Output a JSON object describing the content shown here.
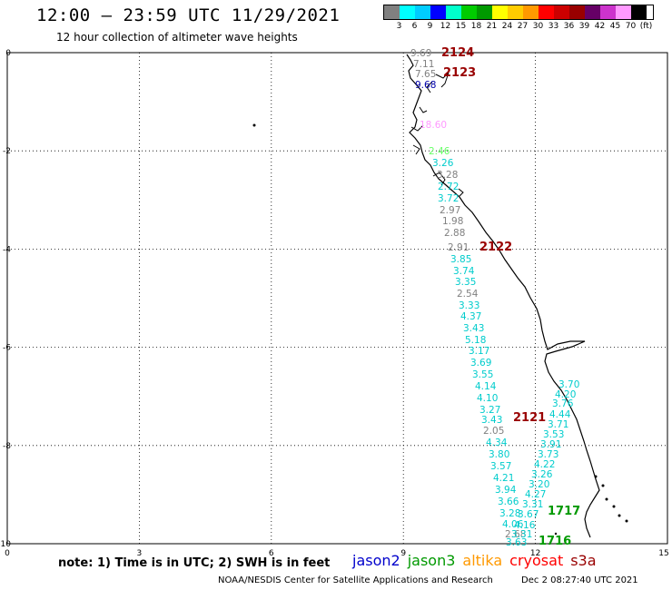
{
  "title": "12:00 – 23:59 UTC 11/29/2021",
  "subtitle": "12 hour collection of altimeter wave heights",
  "color_scale": {
    "colors": [
      "#808080",
      "#00ffff",
      "#00ccff",
      "#0000ff",
      "#00ffcc",
      "#00cc00",
      "#009900",
      "#ffff00",
      "#ffcc00",
      "#ff9900",
      "#ff0000",
      "#cc0000",
      "#990000",
      "#660066",
      "#cc33cc",
      "#ff99ff",
      "#000000"
    ],
    "labels": [
      "3",
      "6",
      "9",
      "12",
      "15",
      "18",
      "21",
      "24",
      "27",
      "30",
      "33",
      "36",
      "39",
      "42",
      "45",
      "70",
      "(ft)"
    ]
  },
  "axes": {
    "x_ticks": [
      "0",
      "3",
      "6",
      "9",
      "12",
      "15"
    ],
    "y_ticks": [
      "0",
      "-2",
      "-4",
      "-6",
      "-8",
      "-10"
    ]
  },
  "passes": [
    {
      "label": "2124",
      "color": "#990000"
    },
    {
      "label": "2123",
      "color": "#990000"
    },
    {
      "label": "2122",
      "color": "#990000"
    },
    {
      "label": "2121",
      "color": "#990000"
    },
    {
      "label": "1717",
      "color": "#009900"
    },
    {
      "label": "1716",
      "color": "#009900"
    }
  ],
  "wave_heights": [
    {
      "v": "9.69",
      "c": "#808080"
    },
    {
      "v": "7.11",
      "c": "#808080"
    },
    {
      "v": "7.65",
      "c": "#808080"
    },
    {
      "v": "9.68",
      "c": "#0000aa"
    },
    {
      "v": "18.60",
      "c": "#ff99ff"
    },
    {
      "v": "2.46",
      "c": "#66ff66"
    },
    {
      "v": "3.26",
      "c": "#00cccc"
    },
    {
      "v": "3.28",
      "c": "#808080"
    },
    {
      "v": "2.72",
      "c": "#00cccc"
    },
    {
      "v": "3.72",
      "c": "#00cccc"
    },
    {
      "v": "2.97",
      "c": "#808080"
    },
    {
      "v": "1.98",
      "c": "#808080"
    },
    {
      "v": "2.88",
      "c": "#808080"
    },
    {
      "v": "2.91",
      "c": "#808080"
    },
    {
      "v": "3.85",
      "c": "#00cccc"
    },
    {
      "v": "3.74",
      "c": "#00cccc"
    },
    {
      "v": "3.35",
      "c": "#00cccc"
    },
    {
      "v": "2.54",
      "c": "#808080"
    },
    {
      "v": "3.33",
      "c": "#00cccc"
    },
    {
      "v": "4.37",
      "c": "#00cccc"
    },
    {
      "v": "3.43",
      "c": "#00cccc"
    },
    {
      "v": "5.18",
      "c": "#00cccc"
    },
    {
      "v": "3.17",
      "c": "#00cccc"
    },
    {
      "v": "3.69",
      "c": "#00cccc"
    },
    {
      "v": "3.55",
      "c": "#00cccc"
    },
    {
      "v": "4.14",
      "c": "#00cccc"
    },
    {
      "v": "4.10",
      "c": "#00cccc"
    },
    {
      "v": "3.27",
      "c": "#00cccc"
    },
    {
      "v": "3.43",
      "c": "#00cccc"
    },
    {
      "v": "2.05",
      "c": "#808080"
    },
    {
      "v": "4.34",
      "c": "#00cccc"
    },
    {
      "v": "3.80",
      "c": "#00cccc"
    },
    {
      "v": "3.57",
      "c": "#00cccc"
    },
    {
      "v": "4.21",
      "c": "#00cccc"
    },
    {
      "v": "3.94",
      "c": "#00cccc"
    },
    {
      "v": "3.66",
      "c": "#00cccc"
    },
    {
      "v": "3.28",
      "c": "#00cccc"
    },
    {
      "v": "4.06",
      "c": "#00cccc"
    },
    {
      "v": "2.68",
      "c": "#808080"
    },
    {
      "v": "3.63",
      "c": "#00cccc"
    },
    {
      "v": "3.70",
      "c": "#00cccc"
    },
    {
      "v": "4.20",
      "c": "#00cccc"
    },
    {
      "v": "3.76",
      "c": "#00cccc"
    },
    {
      "v": "4.44",
      "c": "#00cccc"
    },
    {
      "v": "3.71",
      "c": "#00cccc"
    },
    {
      "v": "3.53",
      "c": "#00cccc"
    },
    {
      "v": "3.91",
      "c": "#00cccc"
    },
    {
      "v": "3.73",
      "c": "#00cccc"
    },
    {
      "v": "4.22",
      "c": "#00cccc"
    },
    {
      "v": "3.26",
      "c": "#00cccc"
    },
    {
      "v": "3.20",
      "c": "#00cccc"
    },
    {
      "v": "4.27",
      "c": "#00cccc"
    },
    {
      "v": "3.31",
      "c": "#00cccc"
    },
    {
      "v": "3.67",
      "c": "#00cccc"
    },
    {
      "v": "4.16",
      "c": "#00cccc"
    },
    {
      "v": "3.31",
      "c": "#00cccc"
    }
  ],
  "note": "note:  1) Time is in UTC;  2) SWH is in feet",
  "satellites": [
    {
      "name": "jason2",
      "color": "#0000cc"
    },
    {
      "name": "jason3",
      "color": "#009900"
    },
    {
      "name": "altika",
      "color": "#ff9900"
    },
    {
      "name": "cryosat",
      "color": "#ff0000"
    },
    {
      "name": "s3a",
      "color": "#990000"
    }
  ],
  "footer": {
    "credit": "NOAA/NESDIS Center for Satellite Applications and Research",
    "timestamp": "Dec  2 08:27:40 UTC 2021"
  }
}
